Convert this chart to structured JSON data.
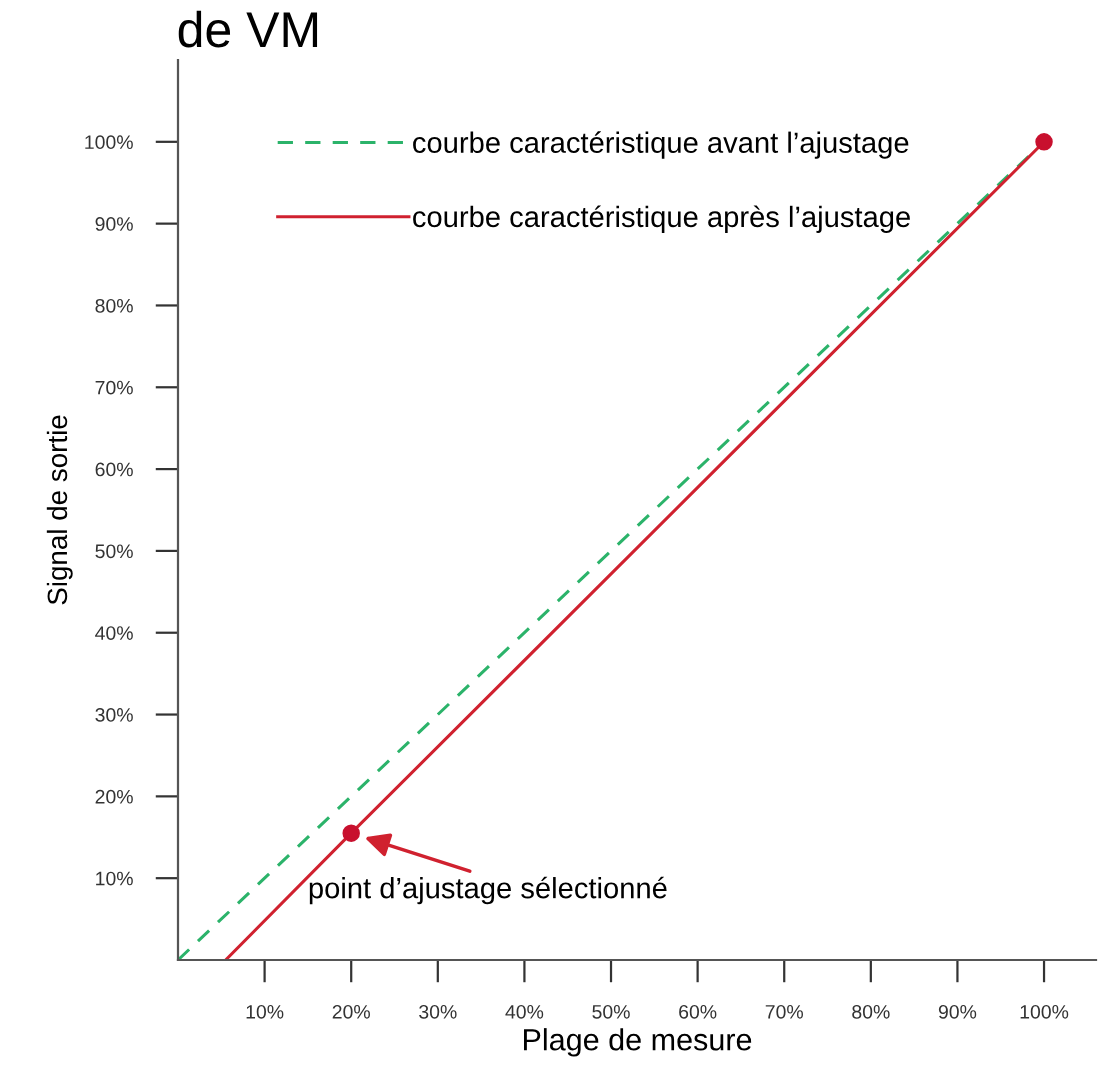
{
  "chart_data": {
    "type": "line",
    "title": "de VM",
    "xlabel": "Plage de mesure",
    "ylabel": "Signal de sortie",
    "xlim": [
      0,
      106
    ],
    "ylim": [
      0,
      110
    ],
    "xticks": [
      {
        "value": 10,
        "label": "10%"
      },
      {
        "value": 20,
        "label": "20%"
      },
      {
        "value": 30,
        "label": "30%"
      },
      {
        "value": 40,
        "label": "40%"
      },
      {
        "value": 50,
        "label": "50%"
      },
      {
        "value": 60,
        "label": "60%"
      },
      {
        "value": 70,
        "label": "70%"
      },
      {
        "value": 80,
        "label": "80%"
      },
      {
        "value": 90,
        "label": "90%"
      },
      {
        "value": 100,
        "label": "100%"
      }
    ],
    "yticks": [
      {
        "value": 10,
        "label": "10%"
      },
      {
        "value": 20,
        "label": "20%"
      },
      {
        "value": 30,
        "label": "30%"
      },
      {
        "value": 40,
        "label": "40%"
      },
      {
        "value": 50,
        "label": "50%"
      },
      {
        "value": 60,
        "label": "60%"
      },
      {
        "value": 70,
        "label": "70%"
      },
      {
        "value": 80,
        "label": "80%"
      },
      {
        "value": 90,
        "label": "90%"
      },
      {
        "value": 100,
        "label": "100%"
      }
    ],
    "series": [
      {
        "name": "courbe caractéristique avant l’ajustage",
        "color": "#2bb36a",
        "x": [
          0,
          100
        ],
        "values": [
          0,
          100
        ],
        "line_style": "dashed"
      },
      {
        "name": "courbe caractéristique après l’ajustage",
        "color": "#d0212f",
        "x": [
          5.5,
          20,
          100
        ],
        "values": [
          0,
          15.5,
          100
        ],
        "line_style": "solid"
      },
      {
        "type": "scatter",
        "color": "#c8102e",
        "x": [
          20,
          100
        ],
        "values": [
          15.5,
          100
        ]
      }
    ],
    "annotations": [
      {
        "text": "point d’ajustage sélectionné",
        "x": 20,
        "y": 15.5
      }
    ],
    "legend": "top left",
    "grid": false
  }
}
